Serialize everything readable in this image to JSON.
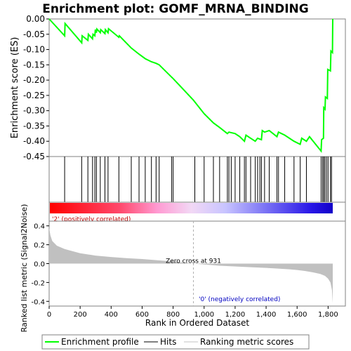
{
  "chart_data": {
    "type": "line",
    "title": "Enrichment plot: GOMF_MRNA_BINDING",
    "n_genes": 1830,
    "zero_cross": 931,
    "es_panel": {
      "ylabel": "Enrichment score (ES)",
      "ylim": [
        -0.45,
        0.0
      ],
      "yticks": [
        0.0,
        -0.05,
        -0.1,
        -0.15,
        -0.2,
        -0.25,
        -0.3,
        -0.35,
        -0.4,
        -0.45
      ],
      "ytick_labels": [
        "0.00",
        "-0.05",
        "-0.10",
        "-0.15",
        "-0.20",
        "-0.25",
        "-0.30",
        "-0.35",
        "-0.40",
        "-0.45"
      ],
      "series_name": "Enrichment profile",
      "line_color": "#00ff00",
      "x": [
        0,
        100,
        103,
        210,
        213,
        250,
        253,
        280,
        283,
        295,
        298,
        305,
        308,
        330,
        333,
        360,
        363,
        380,
        383,
        450,
        453,
        530,
        580,
        620,
        660,
        690,
        710,
        790,
        800,
        930,
        1000,
        1060,
        1100,
        1150,
        1160,
        1200,
        1230,
        1260,
        1270,
        1300,
        1330,
        1345,
        1370,
        1375,
        1390,
        1420,
        1470,
        1480,
        1520,
        1580,
        1620,
        1630,
        1660,
        1680,
        1755,
        1758,
        1770,
        1772,
        1780,
        1783,
        1795,
        1798,
        1815,
        1818,
        1828,
        1830
      ],
      "y": [
        0.0,
        -0.055,
        -0.015,
        -0.078,
        -0.055,
        -0.07,
        -0.05,
        -0.065,
        -0.05,
        -0.055,
        -0.035,
        -0.045,
        -0.033,
        -0.045,
        -0.035,
        -0.048,
        -0.035,
        -0.045,
        -0.032,
        -0.06,
        -0.055,
        -0.095,
        -0.115,
        -0.13,
        -0.14,
        -0.145,
        -0.15,
        -0.19,
        -0.195,
        -0.265,
        -0.31,
        -0.34,
        -0.355,
        -0.375,
        -0.37,
        -0.375,
        -0.385,
        -0.4,
        -0.38,
        -0.39,
        -0.4,
        -0.39,
        -0.395,
        -0.365,
        -0.37,
        -0.365,
        -0.385,
        -0.37,
        -0.38,
        -0.4,
        -0.41,
        -0.39,
        -0.4,
        -0.385,
        -0.432,
        -0.395,
        -0.39,
        -0.29,
        -0.295,
        -0.255,
        -0.26,
        -0.165,
        -0.17,
        -0.105,
        -0.11,
        0.0
      ]
    },
    "hits": [
      100,
      210,
      250,
      280,
      295,
      305,
      330,
      360,
      380,
      450,
      530,
      580,
      620,
      660,
      690,
      710,
      790,
      800,
      940,
      1000,
      1060,
      1100,
      1150,
      1160,
      1175,
      1200,
      1230,
      1260,
      1270,
      1300,
      1330,
      1345,
      1360,
      1370,
      1390,
      1420,
      1470,
      1480,
      1520,
      1580,
      1620,
      1660,
      1755,
      1765,
      1772,
      1780,
      1790,
      1800,
      1815,
      1822
    ],
    "metric_panel": {
      "ylabel": "Ranked list metric (Signal2Noise)",
      "ylim": [
        -0.45,
        0.45
      ],
      "yticks": [
        0.4,
        0.2,
        0.0,
        -0.2,
        -0.4
      ],
      "ytick_labels": [
        "0.4",
        "0.2",
        "0.0",
        "-0.2",
        "-0.4"
      ],
      "series_name": "Ranking metric scores",
      "fill_color": "#c0c0c0",
      "x": [
        0,
        8,
        20,
        50,
        100,
        200,
        300,
        400,
        500,
        600,
        700,
        800,
        931,
        1100,
        1300,
        1450,
        1550,
        1600,
        1650,
        1700,
        1750,
        1780,
        1800,
        1815,
        1825,
        1830
      ],
      "y": [
        0.38,
        0.3,
        0.24,
        0.19,
        0.155,
        0.11,
        0.085,
        0.07,
        0.058,
        0.048,
        0.035,
        0.022,
        0.0,
        -0.022,
        -0.038,
        -0.05,
        -0.06,
        -0.068,
        -0.078,
        -0.092,
        -0.11,
        -0.13,
        -0.16,
        -0.2,
        -0.28,
        -0.42
      ],
      "label_pos": "'2' (positively correlated)",
      "label_neg": "'0' (negatively correlated)",
      "zero_cross_label": "Zero cross at 931"
    },
    "xlabel": "Rank in Ordered Dataset",
    "xlim": [
      0,
      1830
    ],
    "xticks": [
      0,
      200,
      400,
      600,
      800,
      1000,
      1200,
      1400,
      1600,
      1800
    ],
    "xtick_labels": [
      "0",
      "200",
      "400",
      "600",
      "800",
      "1,000",
      "1,200",
      "1,400",
      "1,600",
      "1,800"
    ],
    "legend": {
      "placement": "bottom",
      "items": [
        "Enrichment profile",
        "Hits",
        "Ranking metric scores"
      ]
    }
  }
}
